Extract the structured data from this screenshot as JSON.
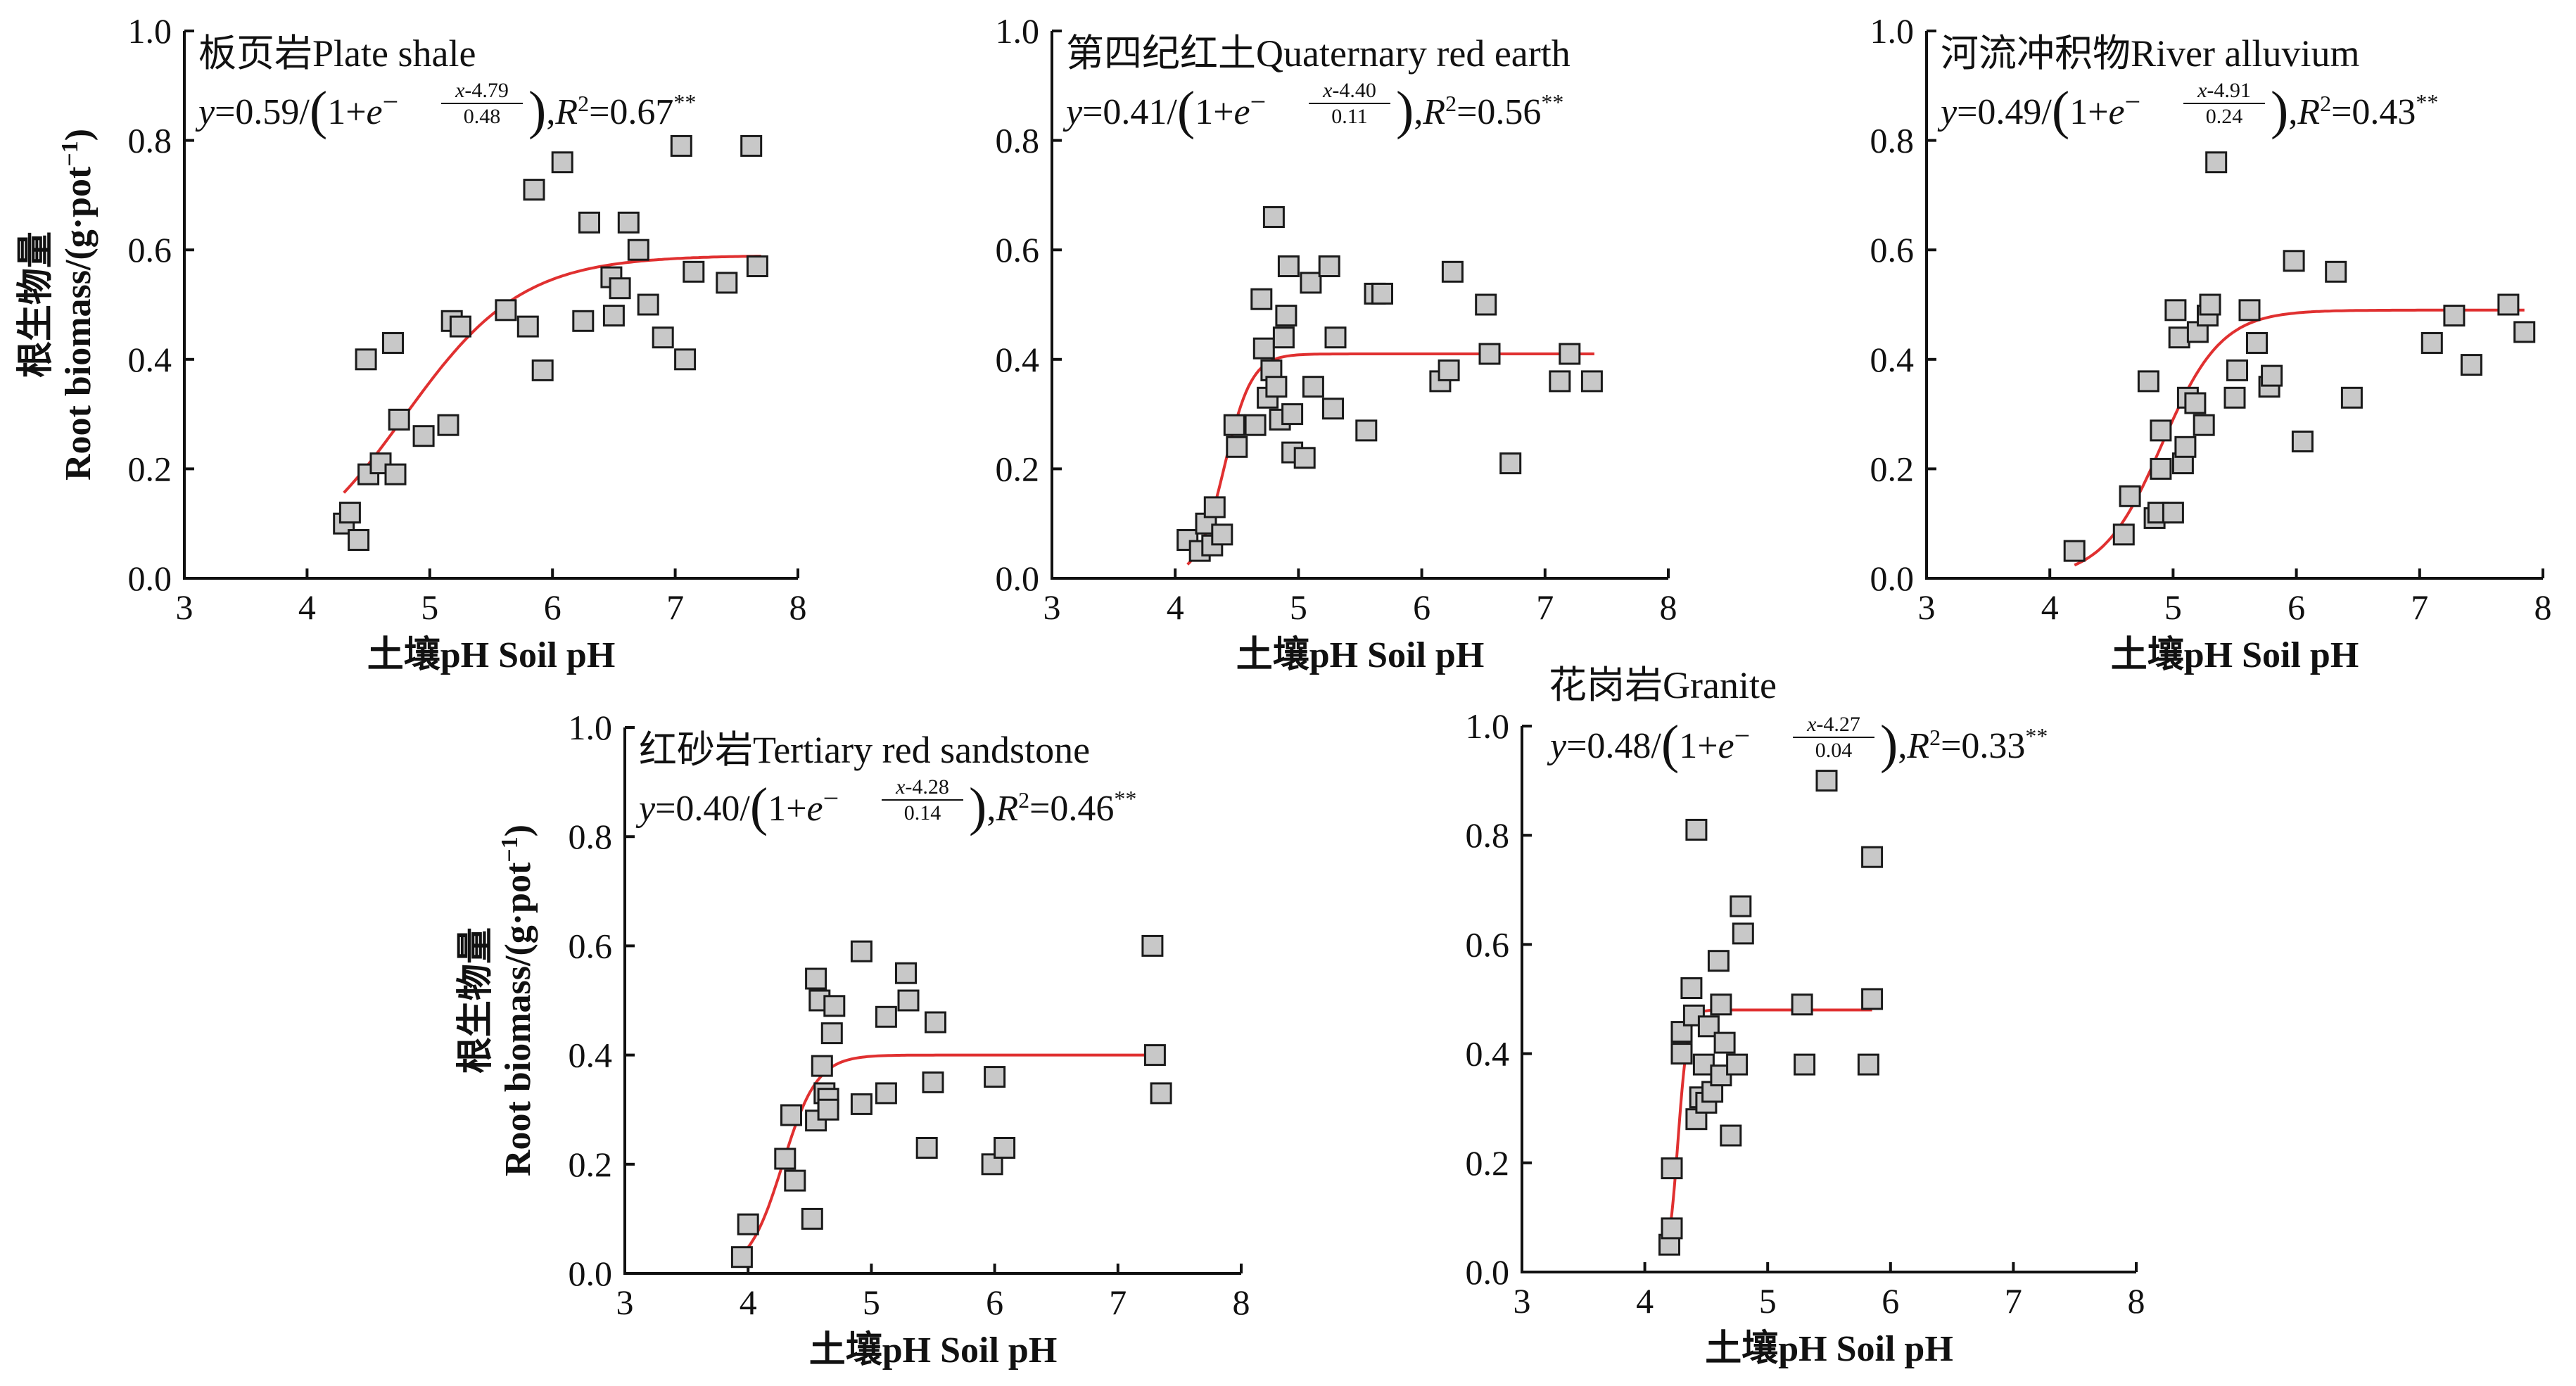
{
  "colors": {
    "marker_fill": "#c8c8c8",
    "marker_stroke": "#1a1a1a",
    "fit_line": "#e03030",
    "axis": "#111111"
  },
  "shared": {
    "xlabel": "土壤pH Soil pH",
    "ylabel_cn": "根生物量",
    "ylabel_en": "Root biomass/(g·pot",
    "ylabel_sup": "−1",
    "ylabel_close": ")"
  },
  "chart_data": [
    {
      "type": "scatter",
      "title": "板页岩Plate shale",
      "equation": {
        "a": "0.59",
        "c": "4.79",
        "b": "0.48",
        "r2": "0.67",
        "sig": "**"
      },
      "fit": {
        "a": 0.59,
        "c": 4.79,
        "b": 0.48,
        "x_range": [
          4.3,
          7.7
        ]
      },
      "xlabel": "土壤pH Soil pH",
      "ylabel": "根生物量 Root biomass/(g·pot−1)",
      "xlim": [
        3,
        8
      ],
      "ylim": [
        0,
        1.0
      ],
      "x_ticks": [
        "3",
        "4",
        "5",
        "6",
        "7",
        "8"
      ],
      "y_ticks": [
        "0.0",
        "0.2",
        "0.4",
        "0.6",
        "0.8",
        "1.0"
      ],
      "points": [
        [
          4.3,
          0.1
        ],
        [
          4.35,
          0.12
        ],
        [
          4.42,
          0.07
        ],
        [
          4.48,
          0.4
        ],
        [
          4.5,
          0.19
        ],
        [
          4.6,
          0.21
        ],
        [
          4.7,
          0.43
        ],
        [
          4.72,
          0.19
        ],
        [
          4.75,
          0.29
        ],
        [
          4.95,
          0.26
        ],
        [
          5.15,
          0.28
        ],
        [
          5.18,
          0.47
        ],
        [
          5.25,
          0.46
        ],
        [
          5.62,
          0.49
        ],
        [
          5.8,
          0.46
        ],
        [
          5.85,
          0.71
        ],
        [
          5.92,
          0.38
        ],
        [
          6.08,
          0.76
        ],
        [
          6.25,
          0.47
        ],
        [
          6.3,
          0.65
        ],
        [
          6.48,
          0.55
        ],
        [
          6.5,
          0.48
        ],
        [
          6.55,
          0.53
        ],
        [
          6.62,
          0.65
        ],
        [
          6.7,
          0.6
        ],
        [
          6.78,
          0.5
        ],
        [
          6.9,
          0.44
        ],
        [
          7.05,
          0.79
        ],
        [
          7.08,
          0.4
        ],
        [
          7.15,
          0.56
        ],
        [
          7.42,
          0.54
        ],
        [
          7.62,
          0.79
        ],
        [
          7.67,
          0.57
        ]
      ]
    },
    {
      "type": "scatter",
      "title": "第四纪红土Quaternary red earth",
      "equation": {
        "a": "0.41",
        "c": "4.40",
        "b": "0.11",
        "r2": "0.56",
        "sig": "**"
      },
      "fit": {
        "a": 0.41,
        "c": 4.4,
        "b": 0.11,
        "x_range": [
          4.1,
          7.4
        ]
      },
      "xlabel": "土壤pH Soil pH",
      "xlim": [
        3,
        8
      ],
      "ylim": [
        0,
        1.0
      ],
      "x_ticks": [
        "3",
        "4",
        "5",
        "6",
        "7",
        "8"
      ],
      "y_ticks": [
        "0.0",
        "0.2",
        "0.4",
        "0.6",
        "0.8",
        "1.0"
      ],
      "points": [
        [
          4.1,
          0.07
        ],
        [
          4.2,
          0.05
        ],
        [
          4.25,
          0.1
        ],
        [
          4.3,
          0.06
        ],
        [
          4.32,
          0.13
        ],
        [
          4.38,
          0.08
        ],
        [
          4.48,
          0.28
        ],
        [
          4.5,
          0.24
        ],
        [
          4.65,
          0.28
        ],
        [
          4.7,
          0.51
        ],
        [
          4.72,
          0.42
        ],
        [
          4.75,
          0.33
        ],
        [
          4.78,
          0.38
        ],
        [
          4.8,
          0.66
        ],
        [
          4.82,
          0.35
        ],
        [
          4.85,
          0.29
        ],
        [
          4.88,
          0.44
        ],
        [
          4.9,
          0.48
        ],
        [
          4.92,
          0.57
        ],
        [
          4.95,
          0.3
        ],
        [
          4.95,
          0.23
        ],
        [
          5.05,
          0.22
        ],
        [
          5.1,
          0.54
        ],
        [
          5.12,
          0.35
        ],
        [
          5.25,
          0.57
        ],
        [
          5.28,
          0.31
        ],
        [
          5.3,
          0.44
        ],
        [
          5.55,
          0.27
        ],
        [
          5.62,
          0.52
        ],
        [
          5.68,
          0.52
        ],
        [
          6.15,
          0.36
        ],
        [
          6.22,
          0.38
        ],
        [
          6.25,
          0.56
        ],
        [
          6.52,
          0.5
        ],
        [
          6.55,
          0.41
        ],
        [
          6.72,
          0.21
        ],
        [
          7.12,
          0.36
        ],
        [
          7.2,
          0.41
        ],
        [
          7.38,
          0.36
        ]
      ]
    },
    {
      "type": "scatter",
      "title": "河流冲积物River alluvium",
      "equation": {
        "a": "0.49",
        "c": "4.91",
        "b": "0.24",
        "r2": "0.43",
        "sig": "**"
      },
      "fit": {
        "a": 0.49,
        "c": 4.91,
        "b": 0.24,
        "x_range": [
          4.2,
          7.85
        ]
      },
      "xlabel": "土壤pH Soil pH",
      "xlim": [
        3,
        8
      ],
      "ylim": [
        0,
        1.0
      ],
      "x_ticks": [
        "3",
        "4",
        "5",
        "6",
        "7",
        "8"
      ],
      "y_ticks": [
        "0.0",
        "0.2",
        "0.4",
        "0.6",
        "0.8",
        "1.0"
      ],
      "points": [
        [
          4.2,
          0.05
        ],
        [
          4.6,
          0.08
        ],
        [
          4.65,
          0.15
        ],
        [
          4.8,
          0.36
        ],
        [
          4.85,
          0.11
        ],
        [
          4.88,
          0.12
        ],
        [
          4.9,
          0.2
        ],
        [
          4.9,
          0.27
        ],
        [
          5.0,
          0.12
        ],
        [
          5.02,
          0.49
        ],
        [
          5.05,
          0.44
        ],
        [
          5.08,
          0.21
        ],
        [
          5.1,
          0.24
        ],
        [
          5.12,
          0.33
        ],
        [
          5.18,
          0.32
        ],
        [
          5.2,
          0.45
        ],
        [
          5.25,
          0.28
        ],
        [
          5.28,
          0.48
        ],
        [
          5.3,
          0.5
        ],
        [
          5.35,
          0.76
        ],
        [
          5.5,
          0.33
        ],
        [
          5.52,
          0.38
        ],
        [
          5.62,
          0.49
        ],
        [
          5.68,
          0.43
        ],
        [
          5.78,
          0.35
        ],
        [
          5.8,
          0.37
        ],
        [
          5.98,
          0.58
        ],
        [
          6.05,
          0.25
        ],
        [
          6.32,
          0.56
        ],
        [
          6.45,
          0.33
        ],
        [
          7.1,
          0.43
        ],
        [
          7.28,
          0.48
        ],
        [
          7.42,
          0.39
        ],
        [
          7.72,
          0.5
        ],
        [
          7.85,
          0.45
        ]
      ]
    },
    {
      "type": "scatter",
      "title": "红砂岩Tertiary red sandstone",
      "equation": {
        "a": "0.40",
        "c": "4.28",
        "b": "0.14",
        "r2": "0.46",
        "sig": "**"
      },
      "fit": {
        "a": 0.4,
        "c": 4.28,
        "b": 0.14,
        "x_range": [
          3.95,
          7.35
        ]
      },
      "xlabel": "土壤pH Soil pH",
      "ylabel": "根生物量 Root biomass/(g·pot−1)",
      "xlim": [
        3,
        8
      ],
      "ylim": [
        0,
        1.0
      ],
      "x_ticks": [
        "3",
        "4",
        "5",
        "6",
        "7",
        "8"
      ],
      "y_ticks": [
        "0.0",
        "0.2",
        "0.4",
        "0.6",
        "0.8",
        "1.0"
      ],
      "points": [
        [
          3.95,
          0.03
        ],
        [
          4.0,
          0.09
        ],
        [
          4.3,
          0.21
        ],
        [
          4.35,
          0.29
        ],
        [
          4.38,
          0.17
        ],
        [
          4.52,
          0.1
        ],
        [
          4.55,
          0.54
        ],
        [
          4.55,
          0.28
        ],
        [
          4.58,
          0.5
        ],
        [
          4.6,
          0.38
        ],
        [
          4.62,
          0.33
        ],
        [
          4.65,
          0.32
        ],
        [
          4.65,
          0.3
        ],
        [
          4.68,
          0.44
        ],
        [
          4.7,
          0.49
        ],
        [
          4.92,
          0.31
        ],
        [
          4.92,
          0.59
        ],
        [
          5.12,
          0.47
        ],
        [
          5.12,
          0.33
        ],
        [
          5.28,
          0.55
        ],
        [
          5.3,
          0.5
        ],
        [
          5.45,
          0.23
        ],
        [
          5.5,
          0.35
        ],
        [
          5.52,
          0.46
        ],
        [
          5.98,
          0.2
        ],
        [
          6.0,
          0.36
        ],
        [
          6.08,
          0.23
        ],
        [
          7.28,
          0.6
        ],
        [
          7.3,
          0.4
        ],
        [
          7.35,
          0.33
        ]
      ]
    },
    {
      "type": "scatter",
      "title": "花岗岩Granite",
      "equation": {
        "a": "0.48",
        "c": "4.27",
        "b": "0.04",
        "r2": "0.33",
        "sig": "**"
      },
      "fit": {
        "a": 0.48,
        "c": 4.27,
        "b": 0.04,
        "x_range": [
          4.2,
          5.85
        ]
      },
      "xlabel": "土壤pH Soil pH",
      "xlim": [
        3,
        8
      ],
      "ylim": [
        0,
        1.0
      ],
      "x_ticks": [
        "3",
        "4",
        "5",
        "6",
        "7",
        "8"
      ],
      "y_ticks": [
        "0.0",
        "0.2",
        "0.4",
        "0.6",
        "0.8",
        "1.0"
      ],
      "points": [
        [
          4.2,
          0.05
        ],
        [
          4.22,
          0.08
        ],
        [
          4.22,
          0.19
        ],
        [
          4.3,
          0.4
        ],
        [
          4.3,
          0.44
        ],
        [
          4.38,
          0.52
        ],
        [
          4.4,
          0.47
        ],
        [
          4.42,
          0.81
        ],
        [
          4.42,
          0.28
        ],
        [
          4.45,
          0.32
        ],
        [
          4.48,
          0.38
        ],
        [
          4.5,
          0.31
        ],
        [
          4.52,
          0.45
        ],
        [
          4.55,
          0.33
        ],
        [
          4.6,
          0.57
        ],
        [
          4.62,
          0.49
        ],
        [
          4.62,
          0.36
        ],
        [
          4.65,
          0.42
        ],
        [
          4.7,
          0.25
        ],
        [
          4.75,
          0.38
        ],
        [
          4.78,
          0.67
        ],
        [
          4.8,
          0.62
        ],
        [
          5.28,
          0.49
        ],
        [
          5.3,
          0.38
        ],
        [
          5.48,
          0.9
        ],
        [
          5.82,
          0.38
        ],
        [
          5.85,
          0.76
        ],
        [
          5.85,
          0.5
        ]
      ]
    }
  ]
}
